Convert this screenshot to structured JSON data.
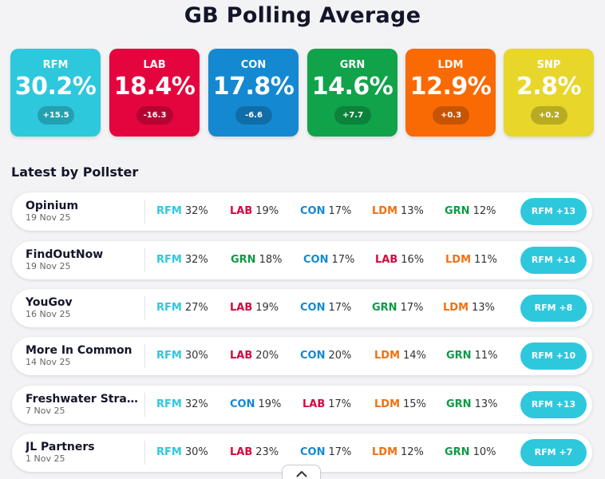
{
  "title": "GB Polling Average",
  "colors": {
    "RFM": "#2ec8dd",
    "LAB": "#e4053f",
    "CON": "#1489d1",
    "GRN": "#10a34a",
    "LDM": "#f96a05",
    "SNP": "#e8d62a"
  },
  "text_colors": {
    "RFM": "#2ec8dd",
    "LAB": "#d6073f",
    "CON": "#1489d1",
    "GRN": "#0f9a45",
    "LDM": "#f07012",
    "SNP": "#c9b800"
  },
  "averages": [
    {
      "party": "RFM",
      "pct": "30.2%",
      "change": "+15.5"
    },
    {
      "party": "LAB",
      "pct": "18.4%",
      "change": "-16.3"
    },
    {
      "party": "CON",
      "pct": "17.8%",
      "change": "-6.6"
    },
    {
      "party": "GRN",
      "pct": "14.6%",
      "change": "+7.7"
    },
    {
      "party": "LDM",
      "pct": "12.9%",
      "change": "+0.3"
    },
    {
      "party": "SNP",
      "pct": "2.8%",
      "change": "+0.2"
    }
  ],
  "section_title": "Latest by Pollster",
  "polls": [
    {
      "pollster": "Opinium",
      "date": "19 Nov 25",
      "results": [
        {
          "party": "RFM",
          "value": "32%"
        },
        {
          "party": "LAB",
          "value": "19%"
        },
        {
          "party": "CON",
          "value": "17%"
        },
        {
          "party": "LDM",
          "value": "13%"
        },
        {
          "party": "GRN",
          "value": "12%"
        }
      ],
      "lead": "RFM +13"
    },
    {
      "pollster": "FindOutNow",
      "date": "19 Nov 25",
      "results": [
        {
          "party": "RFM",
          "value": "32%"
        },
        {
          "party": "GRN",
          "value": "18%"
        },
        {
          "party": "CON",
          "value": "17%"
        },
        {
          "party": "LAB",
          "value": "16%"
        },
        {
          "party": "LDM",
          "value": "11%"
        }
      ],
      "lead": "RFM +14"
    },
    {
      "pollster": "YouGov",
      "date": "16 Nov 25",
      "results": [
        {
          "party": "RFM",
          "value": "27%"
        },
        {
          "party": "LAB",
          "value": "19%"
        },
        {
          "party": "CON",
          "value": "17%"
        },
        {
          "party": "GRN",
          "value": "17%"
        },
        {
          "party": "LDM",
          "value": "13%"
        }
      ],
      "lead": "RFM +8"
    },
    {
      "pollster": "More In Common",
      "date": "14 Nov 25",
      "results": [
        {
          "party": "RFM",
          "value": "30%"
        },
        {
          "party": "LAB",
          "value": "20%"
        },
        {
          "party": "CON",
          "value": "20%"
        },
        {
          "party": "LDM",
          "value": "14%"
        },
        {
          "party": "GRN",
          "value": "11%"
        }
      ],
      "lead": "RFM +10"
    },
    {
      "pollster": "Freshwater Strat...",
      "date": "7 Nov 25",
      "results": [
        {
          "party": "RFM",
          "value": "32%"
        },
        {
          "party": "CON",
          "value": "19%"
        },
        {
          "party": "LAB",
          "value": "17%"
        },
        {
          "party": "LDM",
          "value": "15%"
        },
        {
          "party": "GRN",
          "value": "13%"
        }
      ],
      "lead": "RFM +13"
    },
    {
      "pollster": "JL Partners",
      "date": "1 Nov 25",
      "results": [
        {
          "party": "RFM",
          "value": "30%"
        },
        {
          "party": "LAB",
          "value": "23%"
        },
        {
          "party": "CON",
          "value": "17%"
        },
        {
          "party": "LDM",
          "value": "12%"
        },
        {
          "party": "GRN",
          "value": "10%"
        }
      ],
      "lead": "RFM +7"
    }
  ],
  "scroll_icon": "chevron-up-icon"
}
